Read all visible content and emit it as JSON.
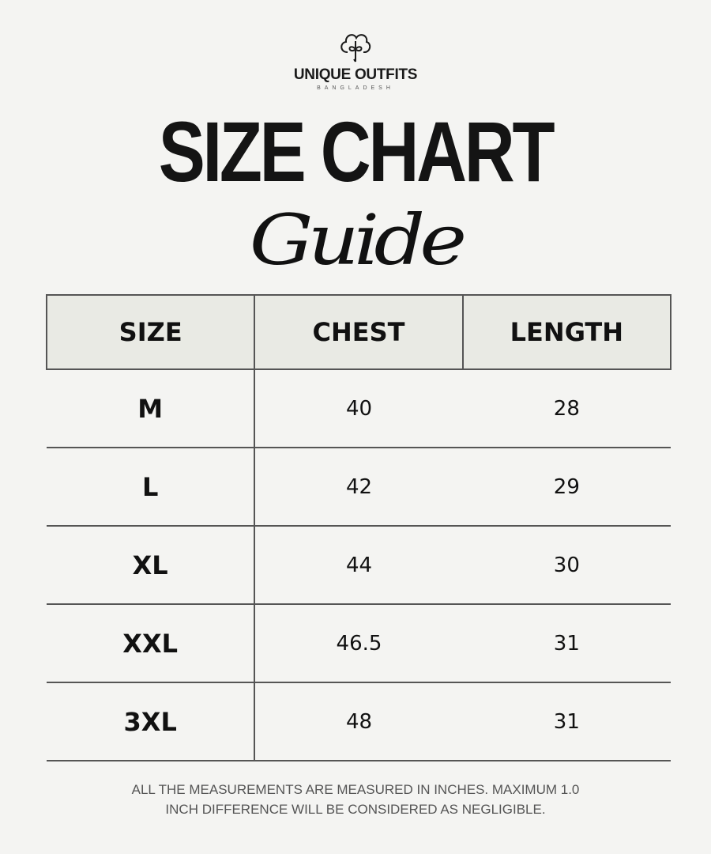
{
  "brand": {
    "name": "UNIQUE OUTFITS",
    "subtitle": "BANGLADESH",
    "icon": "cotton-flower-icon"
  },
  "title": {
    "main": "SIZE CHART",
    "script": "Guide"
  },
  "table": {
    "headers": [
      "SIZE",
      "CHEST",
      "LENGTH"
    ],
    "rows": [
      {
        "size": "M",
        "chest": "40",
        "length": "28"
      },
      {
        "size": "L",
        "chest": "42",
        "length": "29"
      },
      {
        "size": "XL",
        "chest": "44",
        "length": "30"
      },
      {
        "size": "XXL",
        "chest": "46.5",
        "length": "31"
      },
      {
        "size": "3XL",
        "chest": "48",
        "length": "31"
      }
    ]
  },
  "footer": {
    "line1": "ALL THE MEASUREMENTS ARE MEASURED IN INCHES. MAXIMUM 1.0",
    "line2": "INCH DIFFERENCE WILL BE CONSIDERED AS NEGLIGIBLE."
  }
}
